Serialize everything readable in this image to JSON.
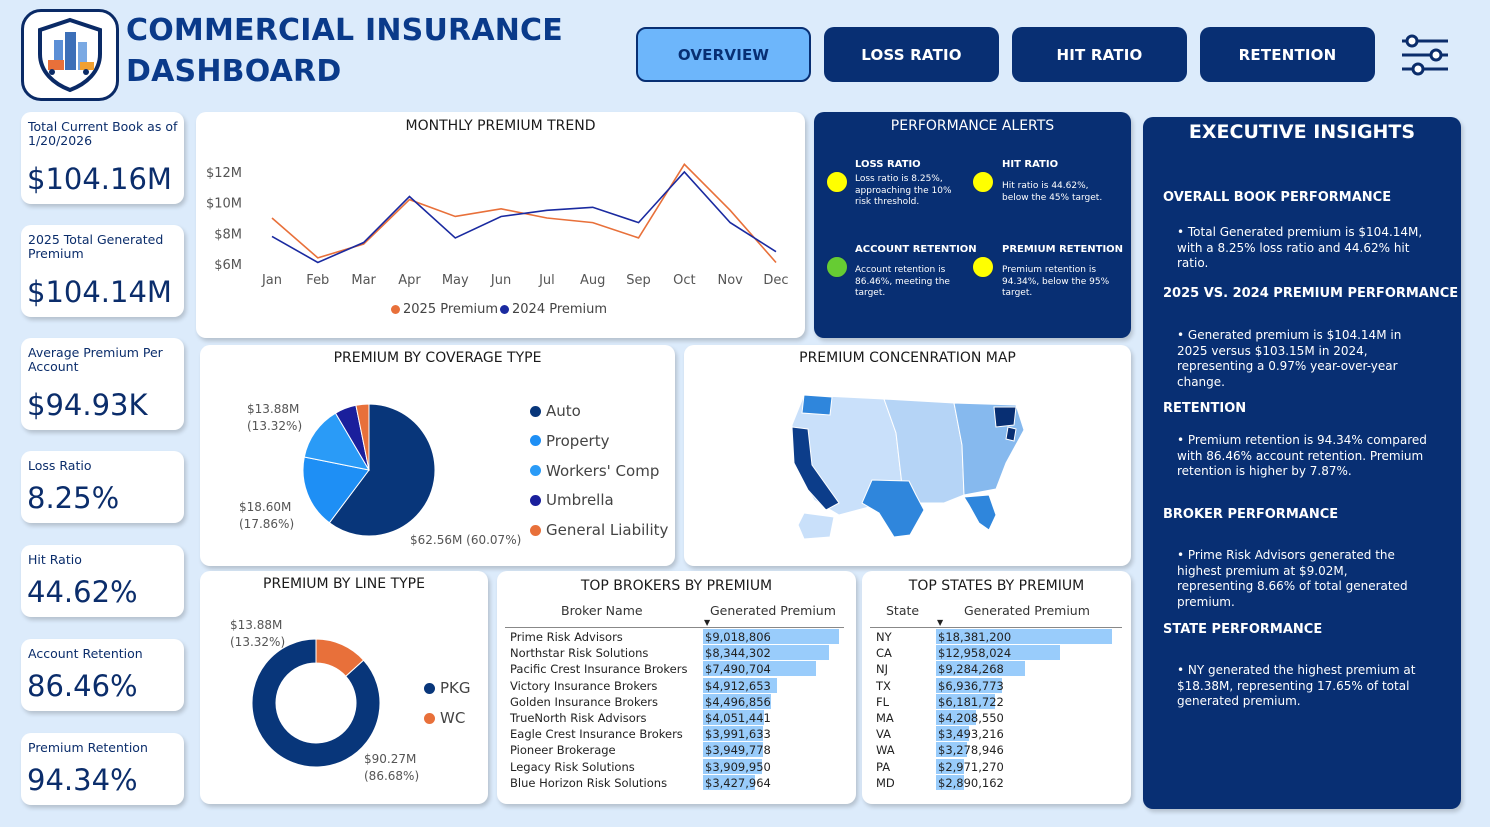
{
  "header": {
    "title_line1": "COMMERCIAL INSURANCE",
    "title_line2": "DASHBOARD",
    "nav": [
      "OVERVIEW",
      "LOSS RATIO",
      "HIT RATIO",
      "RETENTION"
    ],
    "active_tab": "OVERVIEW",
    "icons": [
      "insurance-logo-icon",
      "filter-sliders-icon"
    ]
  },
  "kpis": [
    {
      "label": "Total Current Book as of 1/20/2026",
      "value": "$104.16M"
    },
    {
      "label": "2025 Total Generated Premium",
      "value": "$104.14M"
    },
    {
      "label": "Average Premium Per Account",
      "value": "$94.93K"
    },
    {
      "label": "Loss Ratio",
      "value": "8.25%"
    },
    {
      "label": "Hit Ratio",
      "value": "44.62%"
    },
    {
      "label": "Account Retention",
      "value": "86.46%"
    },
    {
      "label": "Premium Retention",
      "value": "94.34%"
    }
  ],
  "colors": {
    "navy": "#082f73",
    "accent_blue": "#6db6fb",
    "orange": "#e8703a",
    "dark_blue_line": "#1a2aa0",
    "alert_yellow": "#ffff00",
    "alert_green": "#66cc33"
  },
  "monthly_trend": {
    "title": "MONTHLY PREMIUM TREND",
    "legend": [
      "2025 Premium",
      "2024 Premium"
    ],
    "y_ticks": [
      "$12M",
      "$10M",
      "$8M",
      "$6M"
    ]
  },
  "coverage": {
    "title": "PREMIUM BY COVERAGE TYPE",
    "labels": [
      {
        "line1": "$13.88M",
        "line2": "(13.32%)"
      },
      {
        "line1": "$18.60M",
        "line2": "(17.86%)"
      },
      {
        "line1": "$62.56M (60.07%)",
        "line2": ""
      }
    ]
  },
  "map": {
    "title": "PREMIUM CONCENRATION MAP",
    "high_states": [
      "NY",
      "CA",
      "NJ",
      "TX",
      "FL"
    ]
  },
  "line_type": {
    "title": "PREMIUM BY LINE TYPE",
    "labels": [
      {
        "line1": "$13.88M",
        "line2": "(13.32%)"
      },
      {
        "line1": "$90.27M",
        "line2": "(86.68%)"
      }
    ]
  },
  "brokers": {
    "title": "TOP BROKERS BY PREMIUM",
    "col1": "Broker Name",
    "col2": "Generated Premium",
    "rows": [
      {
        "name": "Prime Risk Advisors",
        "value": "$9,018,806",
        "num": 9018806
      },
      {
        "name": "Northstar Risk Solutions",
        "value": "$8,344,302",
        "num": 8344302
      },
      {
        "name": "Pacific Crest Insurance Brokers",
        "value": "$7,490,704",
        "num": 7490704
      },
      {
        "name": "Victory Insurance Brokers",
        "value": "$4,912,653",
        "num": 4912653
      },
      {
        "name": "Golden Insurance Brokers",
        "value": "$4,496,856",
        "num": 4496856
      },
      {
        "name": "TrueNorth Risk Advisors",
        "value": "$4,051,441",
        "num": 4051441
      },
      {
        "name": "Eagle Crest Insurance Brokers",
        "value": "$3,991,633",
        "num": 3991633
      },
      {
        "name": "Pioneer Brokerage",
        "value": "$3,949,778",
        "num": 3949778
      },
      {
        "name": "Legacy Risk Solutions",
        "value": "$3,909,950",
        "num": 3909950
      },
      {
        "name": "Blue Horizon Risk Solutions",
        "value": "$3,427,964",
        "num": 3427964
      }
    ]
  },
  "states": {
    "title": "TOP STATES BY PREMIUM",
    "col1": "State",
    "col2": "Generated Premium",
    "rows": [
      {
        "name": "NY",
        "value": "$18,381,200",
        "num": 18381200
      },
      {
        "name": "CA",
        "value": "$12,958,024",
        "num": 12958024
      },
      {
        "name": "NJ",
        "value": "$9,284,268",
        "num": 9284268
      },
      {
        "name": "TX",
        "value": "$6,936,773",
        "num": 6936773
      },
      {
        "name": "FL",
        "value": "$6,181,722",
        "num": 6181722
      },
      {
        "name": "MA",
        "value": "$4,208,550",
        "num": 4208550
      },
      {
        "name": "VA",
        "value": "$3,493,216",
        "num": 3493216
      },
      {
        "name": "WA",
        "value": "$3,278,946",
        "num": 3278946
      },
      {
        "name": "PA",
        "value": "$2,971,270",
        "num": 2971270
      },
      {
        "name": "MD",
        "value": "$2,890,162",
        "num": 2890162
      }
    ]
  },
  "alerts": {
    "title": "PERFORMANCE ALERTS",
    "items": [
      {
        "title": "LOSS RATIO",
        "text": "Loss ratio is 8.25%, approaching the 10% risk threshold.",
        "status": "warning"
      },
      {
        "title": "HIT RATIO",
        "text": "Hit ratio is 44.62%, below the 45% target.",
        "status": "warning"
      },
      {
        "title": "ACCOUNT RETENTION",
        "text": "Account retention is 86.46%, meeting the target.",
        "status": "good"
      },
      {
        "title": "PREMIUM RETENTION",
        "text": "Premium retention is 94.34%, below the 95% target.",
        "status": "warning"
      }
    ]
  },
  "insights": {
    "title": "EXECUTIVE INSIGHTS",
    "sections": [
      {
        "heading": "OVERALL BOOK PERFORMANCE",
        "text": "• Total Generated premium is $104.14M, with a 8.25% loss ratio and 44.62% hit ratio."
      },
      {
        "heading": "2025 VS. 2024 PREMIUM PERFORMANCE",
        "text": "• Generated premium is $104.14M in 2025 versus $103.15M in 2024, representing a 0.97% year-over-year change."
      },
      {
        "heading": "RETENTION",
        "text": "• Premium retention is 94.34% compared with 86.46% account retention. Premium retention is higher by 7.87%."
      },
      {
        "heading": "BROKER PERFORMANCE",
        "text": "• Prime Risk Advisors generated the highest premium at $9.02M, representing 8.66% of total generated premium."
      },
      {
        "heading": "STATE PERFORMANCE",
        "text": "• NY generated the highest premium at $18.38M, representing 17.65% of total generated premium."
      }
    ]
  },
  "chart_data": [
    {
      "type": "line",
      "title": "MONTHLY PREMIUM TREND",
      "x": [
        "Jan",
        "Feb",
        "Mar",
        "Apr",
        "May",
        "Jun",
        "Jul",
        "Aug",
        "Sep",
        "Oct",
        "Nov",
        "Dec"
      ],
      "series": [
        {
          "name": "2025 Premium",
          "color": "#e8703a",
          "values": [
            9.0,
            6.4,
            7.3,
            10.2,
            9.1,
            9.6,
            9.0,
            8.7,
            7.7,
            12.5,
            9.5,
            6.1
          ]
        },
        {
          "name": "2024 Premium",
          "color": "#1a2aa0",
          "values": [
            7.8,
            6.1,
            7.4,
            10.4,
            7.7,
            9.1,
            9.5,
            9.7,
            8.7,
            12.0,
            8.7,
            6.8
          ]
        }
      ],
      "ylim": [
        6,
        12
      ],
      "y_ticks": [
        "$12M",
        "$10M",
        "$8M",
        "$6M"
      ],
      "legend": "bottom",
      "grid": false
    },
    {
      "type": "pie",
      "title": "PREMIUM BY COVERAGE TYPE",
      "categories": [
        "Auto",
        "Property",
        "Workers' Comp",
        "Umbrella",
        "General Liability"
      ],
      "values": [
        62.56,
        18.6,
        13.88,
        5.5,
        3.3
      ],
      "colors": [
        "#08367a",
        "#1e8ff5",
        "#2a9bf7",
        "#1a1f9c",
        "#e8703a"
      ],
      "legend": "right"
    },
    {
      "type": "pie",
      "title": "PREMIUM BY LINE TYPE",
      "donut": true,
      "categories": [
        "PKG",
        "WC"
      ],
      "values": [
        90.27,
        13.88
      ],
      "colors": [
        "#08367a",
        "#e8703a"
      ],
      "legend": "right"
    },
    {
      "type": "bar",
      "title": "TOP BROKERS BY PREMIUM",
      "orientation": "horizontal",
      "categories": [
        "Prime Risk Advisors",
        "Northstar Risk Solutions",
        "Pacific Crest Insurance Brokers",
        "Victory Insurance Brokers",
        "Golden Insurance Brokers",
        "TrueNorth Risk Advisors",
        "Eagle Crest Insurance Brokers",
        "Pioneer Brokerage",
        "Legacy Risk Solutions",
        "Blue Horizon Risk Solutions"
      ],
      "values": [
        9018806,
        8344302,
        7490704,
        4912653,
        4496856,
        4051441,
        3991633,
        3949778,
        3909950,
        3427964
      ]
    },
    {
      "type": "bar",
      "title": "TOP STATES BY PREMIUM",
      "orientation": "horizontal",
      "categories": [
        "NY",
        "CA",
        "NJ",
        "TX",
        "FL",
        "MA",
        "VA",
        "WA",
        "PA",
        "MD"
      ],
      "values": [
        18381200,
        12958024,
        9284268,
        6936773,
        6181722,
        4208550,
        3493216,
        3278946,
        2971270,
        2890162
      ]
    }
  ]
}
